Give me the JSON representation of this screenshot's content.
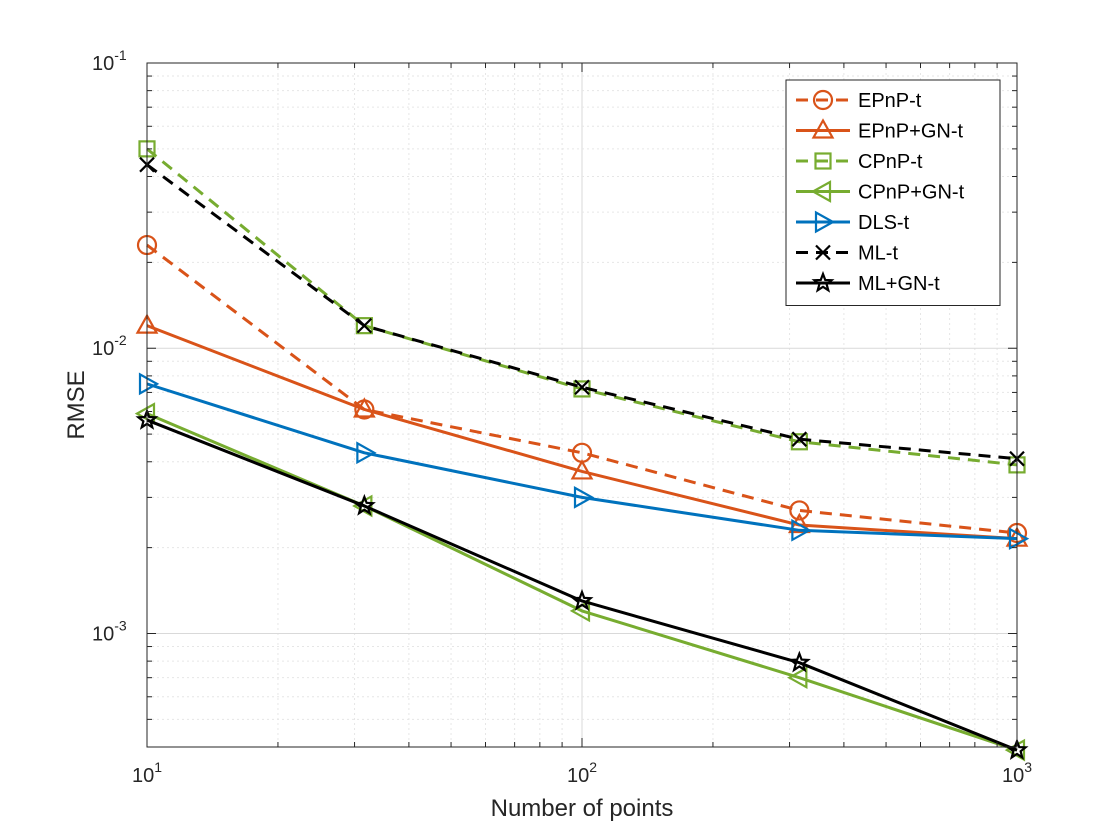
{
  "chart_data": {
    "type": "line",
    "title": "",
    "xlabel": "Number of points",
    "ylabel": "RMSE",
    "xscale": "log",
    "yscale": "log",
    "xlim": [
      10,
      1000
    ],
    "ylim": [
      0.0004,
      0.1
    ],
    "grid": true,
    "legend_position": "top-right",
    "x": [
      10,
      31.6,
      100,
      316,
      1000
    ],
    "x_ticks": [
      {
        "base": "10",
        "exp": "1"
      },
      {
        "base": "10",
        "exp": "2"
      },
      {
        "base": "10",
        "exp": "3"
      }
    ],
    "y_ticks": [
      {
        "base": "10",
        "exp": "-3"
      },
      {
        "base": "10",
        "exp": "-2"
      },
      {
        "base": "10",
        "exp": "-1"
      }
    ],
    "series": [
      {
        "name": "EPnP-t",
        "color": "#D95319",
        "line": "dashed",
        "marker": "circle",
        "values": [
          0.023,
          0.0061,
          0.0043,
          0.0027,
          0.00225
        ]
      },
      {
        "name": "EPnP+GN-t",
        "color": "#D95319",
        "line": "solid",
        "marker": "triangle-up",
        "values": [
          0.012,
          0.0061,
          0.0037,
          0.0024,
          0.00215
        ]
      },
      {
        "name": "CPnP-t",
        "color": "#77AC30",
        "line": "dashed",
        "marker": "square",
        "values": [
          0.05,
          0.012,
          0.0072,
          0.0047,
          0.0039
        ]
      },
      {
        "name": "CPnP+GN-t",
        "color": "#77AC30",
        "line": "solid",
        "marker": "triangle-left",
        "values": [
          0.0059,
          0.0028,
          0.0012,
          0.0007,
          0.00039
        ]
      },
      {
        "name": "DLS-t",
        "color": "#0072BD",
        "line": "solid",
        "marker": "triangle-right",
        "values": [
          0.0075,
          0.0043,
          0.003,
          0.0023,
          0.00215
        ]
      },
      {
        "name": "ML-t",
        "color": "#000000",
        "line": "dashed",
        "marker": "x",
        "values": [
          0.044,
          0.012,
          0.0073,
          0.0048,
          0.0041
        ]
      },
      {
        "name": "ML+GN-t",
        "color": "#000000",
        "line": "solid",
        "marker": "star",
        "values": [
          0.0056,
          0.0028,
          0.0013,
          0.00079,
          0.00039
        ]
      }
    ]
  }
}
